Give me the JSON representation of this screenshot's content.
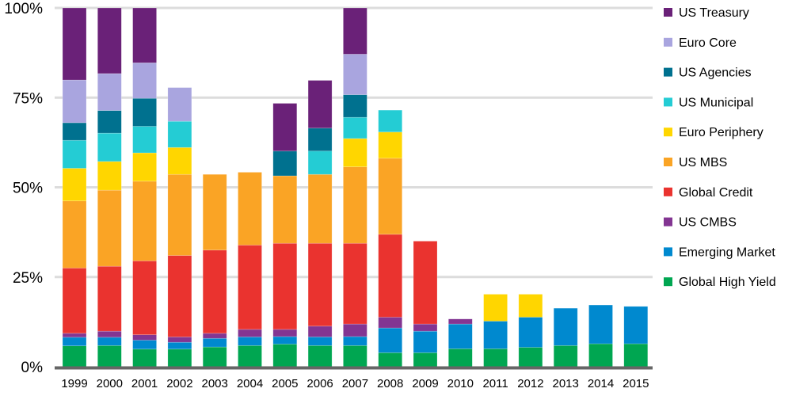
{
  "chart_data": {
    "type": "bar",
    "stacked": true,
    "title": "",
    "xlabel": "",
    "ylabel": "",
    "ylim": [
      0,
      100
    ],
    "y_ticks": [
      "0%",
      "25%",
      "50%",
      "75%",
      "100%"
    ],
    "y_tick_values": [
      0,
      25,
      50,
      75,
      100
    ],
    "grid": "horizontal",
    "legend_position": "right",
    "categories": [
      "1999",
      "2000",
      "2001",
      "2002",
      "2003",
      "2004",
      "2005",
      "2006",
      "2007",
      "2008",
      "2009",
      "2010",
      "2011",
      "2012",
      "2013",
      "2014",
      "2015"
    ],
    "series": [
      {
        "name": "Global High Yield",
        "color": "#00A651",
        "values": [
          5.8,
          5.9,
          4.9,
          4.9,
          5.5,
          5.9,
          6.3,
          5.9,
          5.9,
          3.9,
          3.9,
          5.0,
          5.0,
          5.4,
          5.9,
          6.4,
          6.4
        ]
      },
      {
        "name": "Emerging Market",
        "color": "#0089CF",
        "values": [
          2.4,
          2.3,
          2.5,
          1.9,
          2.4,
          2.4,
          2.1,
          2.4,
          2.5,
          6.9,
          6.0,
          6.9,
          7.7,
          8.4,
          10.4,
          10.8,
          10.4
        ]
      },
      {
        "name": "US CMBS",
        "color": "#833592",
        "values": [
          1.1,
          1.7,
          1.5,
          1.5,
          1.4,
          2.1,
          2.0,
          3.0,
          3.5,
          3.0,
          2.0,
          1.4,
          0,
          0,
          0,
          0,
          0
        ]
      },
      {
        "name": "Global Credit",
        "color": "#EA332F",
        "values": [
          18.2,
          18.1,
          20.6,
          22.7,
          23.2,
          23.5,
          24.0,
          23.1,
          22.5,
          23.1,
          23.1,
          0,
          0,
          0,
          0,
          0,
          0
        ]
      },
      {
        "name": "US MBS",
        "color": "#FAA425",
        "values": [
          18.7,
          21.2,
          22.2,
          22.6,
          21.1,
          20.3,
          18.8,
          19.2,
          21.3,
          21.2,
          0,
          0,
          0,
          0,
          0,
          0,
          0
        ]
      },
      {
        "name": "Euro Periphery",
        "color": "#FFD600",
        "values": [
          9.1,
          8.0,
          7.9,
          7.5,
          0,
          0,
          0,
          0,
          7.9,
          7.3,
          0,
          0,
          7.5,
          6.4,
          0,
          0,
          0
        ]
      },
      {
        "name": "US Municipal",
        "color": "#24CCD4",
        "values": [
          7.8,
          7.9,
          7.4,
          7.3,
          0,
          0,
          0,
          6.5,
          5.9,
          6.1,
          0,
          0,
          0,
          0,
          0,
          0,
          0
        ]
      },
      {
        "name": "US Agencies",
        "color": "#00718F",
        "values": [
          4.9,
          6.3,
          7.8,
          0,
          0,
          0,
          6.9,
          6.4,
          6.3,
          0,
          0,
          0,
          0,
          0,
          0,
          0,
          0
        ]
      },
      {
        "name": "Euro Core",
        "color": "#A9A5DF",
        "values": [
          11.9,
          10.3,
          9.9,
          9.4,
          0,
          0,
          0,
          0,
          11.3,
          0,
          0,
          0,
          0,
          0,
          0,
          0,
          0
        ]
      },
      {
        "name": "US Treasury",
        "color": "#6A2178",
        "values": [
          20.1,
          18.3,
          15.3,
          0,
          0,
          0,
          13.3,
          13.3,
          12.9,
          0,
          0,
          0,
          0,
          0,
          0,
          0,
          0
        ]
      }
    ],
    "legend_order": [
      "US Treasury",
      "Euro Core",
      "US Agencies",
      "US Municipal",
      "Euro Periphery",
      "US MBS",
      "Global Credit",
      "US CMBS",
      "Emerging Market",
      "Global High Yield"
    ]
  }
}
